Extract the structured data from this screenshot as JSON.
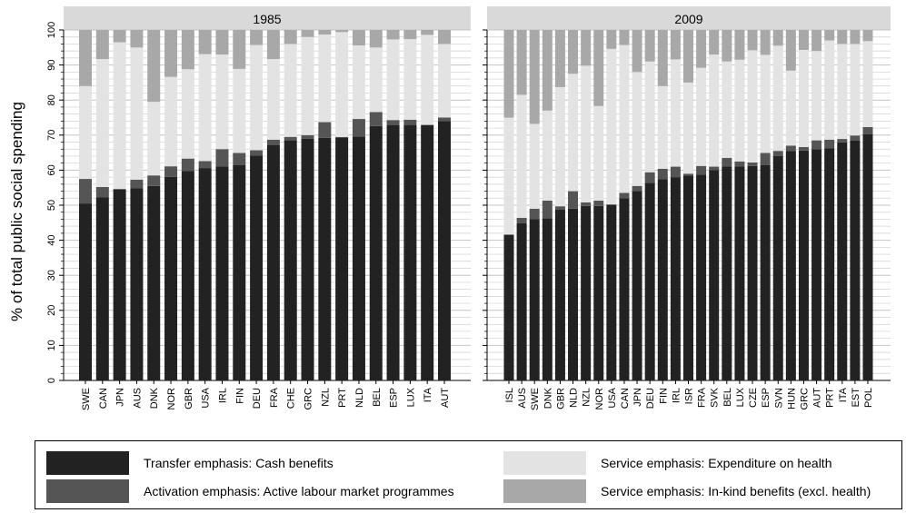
{
  "colors": {
    "cash": "#222222",
    "almp": "#555555",
    "health": "#e3e3e3",
    "inkind": "#a8a8a8",
    "strip": "#d9d9d9",
    "grid": "#cfcfcf"
  },
  "legend": [
    {
      "key": "cash",
      "label": "Transfer emphasis: Cash benefits"
    },
    {
      "key": "health",
      "label": "Service emphasis: Expenditure on health"
    },
    {
      "key": "almp",
      "label": "Activation emphasis: Active labour market programmes"
    },
    {
      "key": "inkind",
      "label": "Service emphasis: In-kind benefits (excl. health)"
    }
  ],
  "chart_data": {
    "type": "bar",
    "stacked": true,
    "ylabel": "% of total public social spending",
    "ylim": [
      0,
      100
    ],
    "yticks": [
      0,
      10,
      20,
      30,
      40,
      50,
      60,
      70,
      80,
      90,
      100
    ],
    "grid": true,
    "legend_position": "bottom",
    "series_names": [
      "Transfer emphasis: Cash benefits",
      "Activation emphasis: Active labour market programmes",
      "Service emphasis: Expenditure on health",
      "Service emphasis: In-kind benefits (excl. health)"
    ],
    "panels": [
      {
        "title": "1985",
        "categories": [
          "SWE",
          "CAN",
          "JPN",
          "AUS",
          "DNK",
          "NOR",
          "GBR",
          "USA",
          "IRL",
          "FIN",
          "DEU",
          "FRA",
          "CHE",
          "GRC",
          "NZL",
          "PRT",
          "NLD",
          "BEL",
          "ESP",
          "LUX",
          "ITA",
          "AUT"
        ],
        "cash": [
          50.5,
          52.2,
          54.6,
          54.8,
          55.5,
          58.1,
          59.8,
          60.6,
          61.0,
          61.4,
          64.2,
          67.2,
          68.5,
          69.0,
          69.2,
          69.4,
          69.6,
          72.6,
          72.8,
          72.9,
          72.9,
          74.0
        ],
        "almp": [
          7.0,
          3.0,
          0.0,
          2.5,
          3.0,
          3.0,
          3.5,
          2.0,
          5.0,
          3.5,
          1.5,
          1.5,
          1.0,
          1.0,
          4.5,
          0.0,
          5.0,
          4.0,
          1.5,
          1.5,
          0.0,
          1.0
        ],
        "health": [
          26.5,
          36.5,
          41.9,
          37.7,
          21.0,
          25.5,
          25.5,
          30.5,
          27.0,
          24.0,
          30.0,
          23.0,
          26.5,
          28.0,
          25.0,
          30.0,
          21.0,
          18.4,
          23.0,
          23.0,
          25.7,
          21.0
        ],
        "inkind": [
          16.0,
          8.3,
          3.5,
          5.0,
          20.5,
          13.4,
          11.2,
          6.9,
          7.0,
          11.1,
          4.3,
          8.3,
          4.0,
          2.0,
          1.3,
          0.6,
          4.4,
          5.0,
          2.7,
          2.6,
          1.4,
          4.0
        ]
      },
      {
        "title": "2009",
        "categories": [
          "ISL",
          "AUS",
          "SWE",
          "DNK",
          "GBR",
          "NLD",
          "NZL",
          "NOR",
          "USA",
          "CAN",
          "JPN",
          "DEU",
          "FIN",
          "IRL",
          "ISR",
          "FRA",
          "SVK",
          "BEL",
          "LUX",
          "CZE",
          "ESP",
          "SVN",
          "HUN",
          "GRC",
          "AUT",
          "PRT",
          "ITA",
          "EST",
          "POL"
        ],
        "cash": [
          41.6,
          44.9,
          46.0,
          46.3,
          48.7,
          49.0,
          49.8,
          49.8,
          50.2,
          52.0,
          54.0,
          56.4,
          57.4,
          58.0,
          58.5,
          58.7,
          60.0,
          61.0,
          61.0,
          61.2,
          61.4,
          64.0,
          65.5,
          65.6,
          66.0,
          66.2,
          67.9,
          68.4,
          70.3
        ],
        "almp": [
          0.0,
          1.5,
          3.0,
          5.0,
          1.0,
          5.0,
          1.0,
          1.5,
          0.0,
          1.5,
          1.5,
          3.0,
          3.0,
          3.0,
          0.5,
          2.5,
          1.0,
          2.5,
          1.5,
          1.0,
          3.5,
          1.5,
          1.5,
          1.0,
          2.5,
          2.5,
          1.0,
          1.5,
          2.0
        ],
        "health": [
          33.4,
          35.1,
          24.2,
          25.7,
          34.0,
          33.5,
          39.0,
          27.0,
          44.4,
          42.2,
          32.5,
          31.6,
          23.6,
          30.6,
          26.0,
          28.0,
          32.0,
          27.5,
          29.0,
          32.0,
          28.0,
          30.0,
          21.4,
          27.7,
          25.5,
          28.3,
          27.1,
          26.1,
          24.5
        ],
        "inkind": [
          25.0,
          18.5,
          26.8,
          23.0,
          16.3,
          12.5,
          10.2,
          21.7,
          5.4,
          4.3,
          12.0,
          9.0,
          16.0,
          8.4,
          15.0,
          10.8,
          7.0,
          9.0,
          8.5,
          5.8,
          7.1,
          4.5,
          11.6,
          5.7,
          6.0,
          3.0,
          4.0,
          4.0,
          3.2
        ]
      }
    ]
  }
}
